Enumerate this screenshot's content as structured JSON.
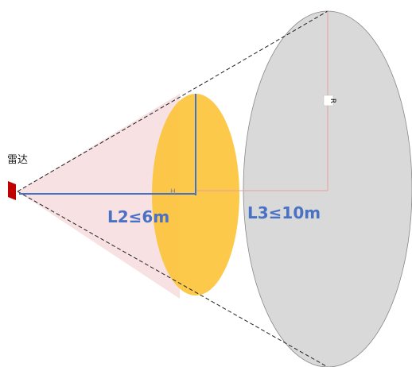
{
  "labels": {
    "radar": "雷达",
    "near_distance": "L2≤6m",
    "far_distance": "L3≤10m",
    "height_marker": "H",
    "radius_marker": "R"
  },
  "colors": {
    "cone_fill": "#f5d9dc",
    "near_ellipse": "#fcc43c",
    "far_ellipse": "#d9d9d9",
    "axis_lines": "#4472c4",
    "radius_lines": "#e8a0a0",
    "radar_body": "#c00000",
    "text_blue": "#4a72c4"
  }
}
